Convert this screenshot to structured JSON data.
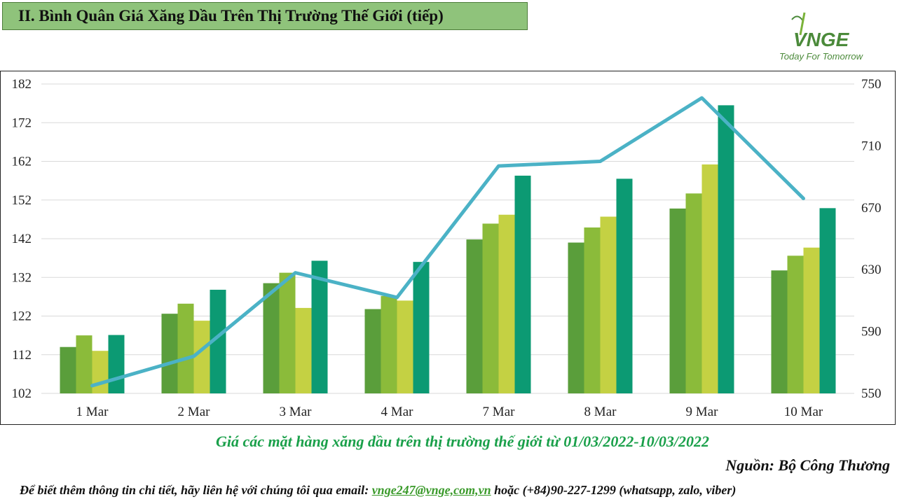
{
  "header": {
    "title": "II. Bình Quân Giá Xăng Dầu Trên Thị Trường Thế Giới (tiếp)"
  },
  "logo": {
    "text": "VNGE",
    "tagline": "Today For Tomorrow"
  },
  "colors": {
    "bar_series": [
      "#5a9e3b",
      "#8bbb3a",
      "#c4d143",
      "#0c9a73"
    ],
    "line": "#4bb2c6",
    "title_bg": "#8fc37b",
    "caption": "#1aa04a",
    "email": "#3a9a2a"
  },
  "chart_data": {
    "type": "bar",
    "categories": [
      "1 Mar",
      "2 Mar",
      "3 Mar",
      "4 Mar",
      "7 Mar",
      "8 Mar",
      "9 Mar",
      "10 Mar"
    ],
    "series": [
      {
        "axis": "left",
        "values": [
          114,
          122.6,
          130.5,
          123.8,
          141.8,
          141,
          149.8,
          133.8
        ]
      },
      {
        "axis": "left",
        "values": [
          117,
          125.2,
          133.2,
          127.2,
          145.9,
          144.9,
          153.7,
          137.6
        ]
      },
      {
        "axis": "left",
        "values": [
          113,
          120.8,
          124.1,
          126,
          148.2,
          147.7,
          161.2,
          139.7
        ]
      },
      {
        "axis": "left",
        "values": [
          117.1,
          128.8,
          136.3,
          136,
          158.3,
          157.5,
          176.5,
          149.9
        ]
      },
      {
        "type": "line",
        "axis": "right",
        "values": [
          555,
          574,
          628,
          612,
          697,
          700,
          741,
          676
        ]
      }
    ],
    "ylim_left": [
      102,
      182
    ],
    "ylim_right": [
      550,
      750
    ],
    "yticks_left": [
      102,
      112,
      122,
      132,
      142,
      152,
      162,
      172,
      182
    ],
    "yticks_right": [
      550,
      590,
      630,
      670,
      710,
      750
    ],
    "grid": true,
    "legend": "none"
  },
  "caption": "Giá các mặt hàng xăng dầu trên thị trường thế giới từ 01/03/2022-10/03/2022",
  "source": "Nguồn: Bộ Công Thương",
  "contact": {
    "prefix": "Để biết thêm thông tin chi tiết, hãy liên hệ với chúng tôi qua email: ",
    "email": "vnge247@vnge,com,vn",
    "suffix": " hoặc (+84)90-227-1299 (whatsapp, zalo, viber)"
  }
}
